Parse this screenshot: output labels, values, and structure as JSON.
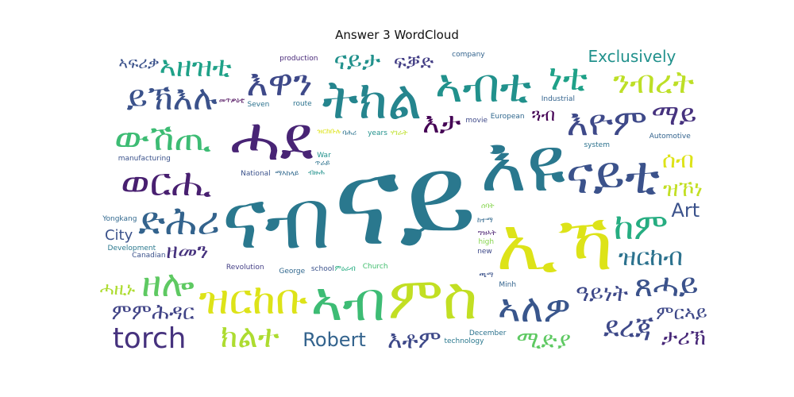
{
  "title": "Answer 3 WordCloud",
  "chart_data": {
    "type": "wordcloud",
    "title": "Answer 3 WordCloud",
    "colormap": "viridis",
    "words": [
      {
        "text": "ናይ",
        "weight": 100,
        "color": "#2a788e"
      },
      {
        "text": "ናብ",
        "weight": 60,
        "color": "#2a788e"
      },
      {
        "text": "እዩ",
        "weight": 55,
        "color": "#2a788e"
      },
      {
        "text": "ኢኻ",
        "weight": 52,
        "color": "#dde318"
      },
      {
        "text": "ሓደ",
        "weight": 40,
        "color": "#482475"
      },
      {
        "text": "ምስ",
        "weight": 38,
        "color": "#c2df23"
      },
      {
        "text": "ትክል",
        "weight": 34,
        "color": "#25858e"
      },
      {
        "text": "ኣብ",
        "weight": 34,
        "color": "#3dbc74"
      },
      {
        "text": "ናይቲ",
        "weight": 32,
        "color": "#3b528b"
      },
      {
        "text": "ኣብቲ",
        "weight": 28,
        "color": "#21918c"
      },
      {
        "text": "ዝርከቡ",
        "weight": 24,
        "color": "#dde318"
      },
      {
        "text": "ድሕሪ",
        "weight": 22,
        "color": "#33638d"
      },
      {
        "text": "ኣለዎ",
        "weight": 22,
        "color": "#39568c"
      },
      {
        "text": "ወርሒ",
        "weight": 22,
        "color": "#481f70"
      },
      {
        "text": "ውሽጢ",
        "weight": 20,
        "color": "#3dbc74"
      },
      {
        "text": "እዋን",
        "weight": 20,
        "color": "#3e4989"
      },
      {
        "text": "እዮም",
        "weight": 20,
        "color": "#3e4989"
      },
      {
        "text": "ከም",
        "weight": 20,
        "color": "#26ad81"
      },
      {
        "text": "ዘሎ",
        "weight": 20,
        "color": "#5ec962"
      },
      {
        "text": "ነቲ",
        "weight": 20,
        "color": "#1fa188"
      },
      {
        "text": "ይኽእሉ",
        "weight": 18,
        "color": "#3b528b"
      },
      {
        "text": "ጸሓይ",
        "weight": 16,
        "color": "#3b528b"
      },
      {
        "text": "ክልተ",
        "weight": 16,
        "color": "#addc30"
      },
      {
        "text": "ማእከላይ",
        "weight": 16,
        "color": "#31688e"
      },
      {
        "text": "ንብረት",
        "weight": 16,
        "color": "#bddf26"
      },
      {
        "text": "ደረጃ",
        "weight": 14,
        "color": "#3e4989"
      },
      {
        "text": "torch",
        "weight": 14,
        "color": "#46327e"
      },
      {
        "text": "እታ",
        "weight": 14,
        "color": "#440154"
      },
      {
        "text": "ማይ",
        "weight": 14,
        "color": "#46327e"
      },
      {
        "text": "ኣዘዝቲ",
        "weight": 14,
        "color": "#1fa188"
      },
      {
        "text": "Church",
        "weight": 12,
        "color": "#44bf70"
      },
      {
        "text": "years",
        "weight": 12,
        "color": "#21918c"
      },
      {
        "text": "school",
        "weight": 12,
        "color": "#3b528b"
      },
      {
        "text": "ሰባት",
        "weight": 12,
        "color": "#84d44b"
      },
      {
        "text": "ሃገራት",
        "weight": 12,
        "color": "#bddf26"
      },
      {
        "text": "ከተማ",
        "weight": 12,
        "color": "#31688e"
      },
      {
        "text": "ምዕራብ",
        "weight": 12,
        "color": "#26ad81"
      },
      {
        "text": "እቶም",
        "weight": 11,
        "color": "#3e4989"
      },
      {
        "text": "ናይታ",
        "weight": 11,
        "color": "#21918c"
      },
      {
        "text": "ዝርከብ",
        "weight": 11,
        "color": "#2c728e"
      },
      {
        "text": "ሚድያ",
        "weight": 10,
        "color": "#5ec962"
      },
      {
        "text": "ግዝኣት",
        "weight": 10,
        "color": "#481f70"
      },
      {
        "text": "ዓይነት",
        "weight": 10,
        "color": "#3e4989"
      },
      {
        "text": "ሰብ",
        "weight": 10,
        "color": "#dde318"
      },
      {
        "text": "ምምሕዳር",
        "weight": 9,
        "color": "#414487"
      },
      {
        "text": "ብዙሕ",
        "weight": 9,
        "color": "#21918c"
      },
      {
        "text": "ዝኾነ",
        "weight": 9,
        "color": "#c2df23"
      },
      {
        "text": "ዘመን",
        "weight": 9,
        "color": "#46327e"
      },
      {
        "text": "ታሪኽ",
        "weight": 9,
        "color": "#482878"
      },
      {
        "text": "ዝርከቡሉ",
        "weight": 9,
        "color": "#dde318"
      },
      {
        "text": "George",
        "weight": 8,
        "color": "#31688e"
      },
      {
        "text": "new",
        "weight": 8,
        "color": "#3e4989"
      },
      {
        "text": "European",
        "weight": 8,
        "color": "#31688e"
      },
      {
        "text": "National",
        "weight": 8,
        "color": "#3b528b"
      },
      {
        "text": "Revolution",
        "weight": 7,
        "color": "#433e85"
      },
      {
        "text": "Robert",
        "weight": 7,
        "color": "#33638d"
      },
      {
        "text": "system",
        "weight": 7,
        "color": "#2c728e"
      },
      {
        "text": "technology",
        "weight": 7,
        "color": "#2a788e"
      },
      {
        "text": "high",
        "weight": 7,
        "color": "#84d44b"
      },
      {
        "text": "Art",
        "weight": 7,
        "color": "#3b528b"
      },
      {
        "text": "Industrial",
        "weight": 7,
        "color": "#33638d"
      },
      {
        "text": "Seven",
        "weight": 7,
        "color": "#2c728e"
      },
      {
        "text": "War",
        "weight": 6,
        "color": "#21918c"
      },
      {
        "text": "Canadian",
        "weight": 6,
        "color": "#3b528b"
      },
      {
        "text": "December",
        "weight": 6,
        "color": "#2c728e"
      },
      {
        "text": "route",
        "weight": 6,
        "color": "#2c728e"
      },
      {
        "text": "Development",
        "weight": 5,
        "color": "#2a788e"
      },
      {
        "text": "Exclusively",
        "weight": 5,
        "color": "#21918c"
      },
      {
        "text": "production",
        "weight": 4,
        "color": "#482878"
      },
      {
        "text": "company",
        "weight": 4,
        "color": "#33638d"
      },
      {
        "text": "manufacturing",
        "weight": 4,
        "color": "#3b528b"
      },
      {
        "text": "Automotive",
        "weight": 4,
        "color": "#33638d"
      },
      {
        "text": "movie",
        "weight": 4,
        "color": "#3e4989"
      },
      {
        "text": "Yongkang",
        "weight": 4,
        "color": "#31688e"
      },
      {
        "text": "City",
        "weight": 4,
        "color": "#3b528b"
      },
      {
        "text": "Minh",
        "weight": 4,
        "color": "#33638d"
      },
      {
        "text": "ጓብ",
        "weight": 6,
        "color": "#440154"
      },
      {
        "text": "ባሕሪ",
        "weight": 6,
        "color": "#2c728e"
      },
      {
        "text": "ፍቓድ",
        "weight": 7,
        "color": "#433e85"
      },
      {
        "text": "ምርኣይ",
        "weight": 7,
        "color": "#3e4989"
      },
      {
        "text": "ሓዚኑ",
        "weight": 6,
        "color": "#addc30"
      },
      {
        "text": "መጥቃዕቲ",
        "weight": 6,
        "color": "#440154"
      },
      {
        "text": "ጫማ",
        "weight": 6,
        "color": "#3b528b"
      },
      {
        "text": "ኣፍሪቃ",
        "weight": 5,
        "color": "#3b528b"
      },
      {
        "text": "ጥራይ",
        "weight": 6,
        "color": "#2c728e"
      }
    ]
  }
}
